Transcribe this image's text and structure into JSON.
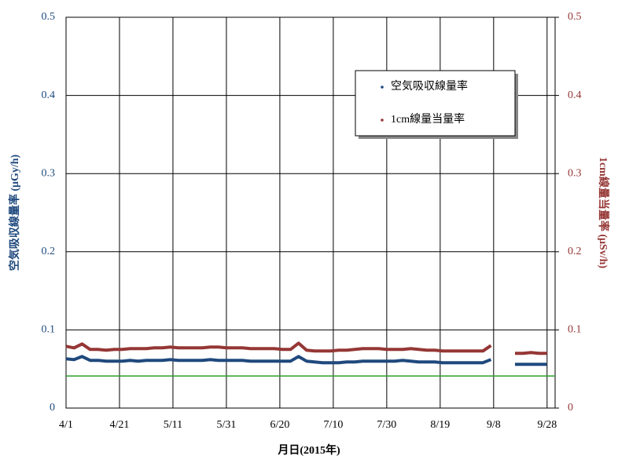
{
  "chart_data": {
    "type": "line",
    "x_label": "月日(2015年)",
    "y_label": "空気吸収線量率 (μGy/h)",
    "y2_label": "1cm線量当量率 (μSv/h)",
    "x": [
      "2015-04-01",
      "2015-04-04",
      "2015-04-07",
      "2015-04-10",
      "2015-04-13",
      "2015-04-16",
      "2015-04-19",
      "2015-04-22",
      "2015-04-25",
      "2015-04-28",
      "2015-05-01",
      "2015-05-04",
      "2015-05-07",
      "2015-05-10",
      "2015-05-13",
      "2015-05-16",
      "2015-05-19",
      "2015-05-22",
      "2015-05-25",
      "2015-05-28",
      "2015-05-31",
      "2015-06-03",
      "2015-06-06",
      "2015-06-09",
      "2015-06-12",
      "2015-06-15",
      "2015-06-18",
      "2015-06-21",
      "2015-06-24",
      "2015-06-27",
      "2015-06-30",
      "2015-07-03",
      "2015-07-06",
      "2015-07-09",
      "2015-07-12",
      "2015-07-15",
      "2015-07-18",
      "2015-07-21",
      "2015-07-24",
      "2015-07-27",
      "2015-07-30",
      "2015-08-02",
      "2015-08-05",
      "2015-08-08",
      "2015-08-11",
      "2015-08-14",
      "2015-08-17",
      "2015-08-20",
      "2015-08-23",
      "2015-08-26",
      "2015-08-29",
      "2015-09-01",
      "2015-09-04",
      "2015-09-07",
      "2015-09-10",
      "2015-09-13",
      "2015-09-16",
      "2015-09-19",
      "2015-09-22",
      "2015-09-25",
      "2015-09-28"
    ],
    "series": [
      {
        "name": "空気吸収線量率",
        "color": "#1f497d",
        "values": [
          0.063,
          0.062,
          0.066,
          0.061,
          0.061,
          0.06,
          0.06,
          0.06,
          0.061,
          0.06,
          0.061,
          0.061,
          0.061,
          0.062,
          0.061,
          0.061,
          0.061,
          0.061,
          0.062,
          0.061,
          0.061,
          0.061,
          0.061,
          0.06,
          0.06,
          0.06,
          0.06,
          0.06,
          0.06,
          0.066,
          0.06,
          0.059,
          0.058,
          0.058,
          0.058,
          0.059,
          0.059,
          0.06,
          0.06,
          0.06,
          0.06,
          0.06,
          0.061,
          0.06,
          0.059,
          0.059,
          0.059,
          0.058,
          0.058,
          0.058,
          0.058,
          0.058,
          0.058,
          0.062,
          null,
          null,
          0.056,
          0.056,
          0.056,
          0.056,
          0.056
        ]
      },
      {
        "name": "1cm線量当量率",
        "color": "#953735",
        "axis": "y2",
        "values": [
          0.079,
          0.077,
          0.082,
          0.075,
          0.075,
          0.074,
          0.075,
          0.075,
          0.076,
          0.076,
          0.076,
          0.077,
          0.077,
          0.078,
          0.077,
          0.077,
          0.077,
          0.077,
          0.078,
          0.078,
          0.077,
          0.077,
          0.077,
          0.076,
          0.076,
          0.076,
          0.076,
          0.075,
          0.075,
          0.083,
          0.074,
          0.073,
          0.073,
          0.073,
          0.074,
          0.074,
          0.075,
          0.076,
          0.076,
          0.076,
          0.075,
          0.075,
          0.075,
          0.076,
          0.075,
          0.074,
          0.074,
          0.073,
          0.073,
          0.073,
          0.073,
          0.073,
          0.073,
          0.08,
          null,
          null,
          0.07,
          0.07,
          0.071,
          0.07,
          0.07
        ]
      }
    ],
    "reference_line": {
      "value": 0.041,
      "color": "#2ca02c"
    },
    "xlim": [
      "2015-04-01",
      "2015-10-01"
    ],
    "xticks": [
      {
        "value": "2015-04-01",
        "label": "4/1"
      },
      {
        "value": "2015-04-21",
        "label": "4/21"
      },
      {
        "value": "2015-05-11",
        "label": "5/11"
      },
      {
        "value": "2015-05-31",
        "label": "5/31"
      },
      {
        "value": "2015-06-20",
        "label": "6/20"
      },
      {
        "value": "2015-07-10",
        "label": "7/10"
      },
      {
        "value": "2015-07-30",
        "label": "7/30"
      },
      {
        "value": "2015-08-19",
        "label": "8/19"
      },
      {
        "value": "2015-09-08",
        "label": "9/8"
      },
      {
        "value": "2015-09-28",
        "label": "9/28"
      }
    ],
    "ylim": [
      0,
      0.5
    ],
    "yticks": [
      0,
      0.1,
      0.2,
      0.3,
      0.4,
      0.5
    ],
    "y2lim": [
      0,
      0.5
    ],
    "y2ticks": [
      0,
      0.1,
      0.2,
      0.3,
      0.4,
      0.5
    ],
    "grid": true,
    "legend": "upper right"
  }
}
